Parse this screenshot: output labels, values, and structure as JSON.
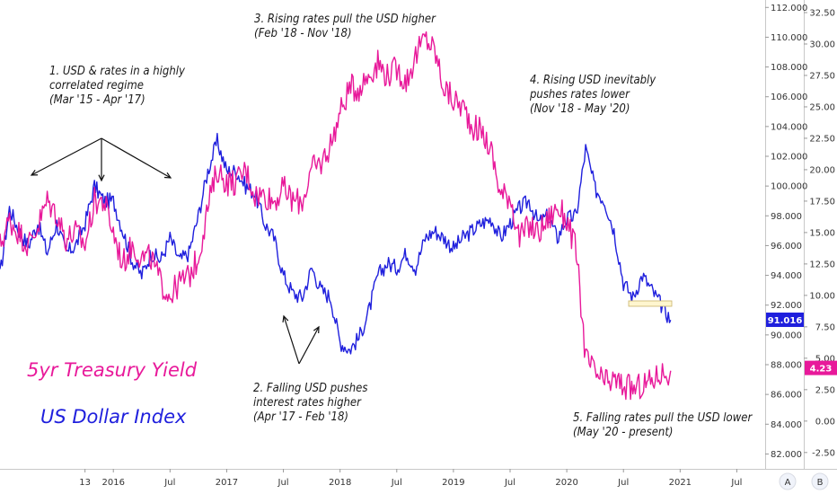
{
  "chart_data": {
    "type": "line",
    "x_range": [
      "2015-01",
      "2021-10"
    ],
    "x_ticks": [
      "13",
      "2016",
      "Jul",
      "2017",
      "Jul",
      "2018",
      "Jul",
      "2019",
      "Jul",
      "2020",
      "Jul",
      "2021",
      "Jul"
    ],
    "left_axis": {
      "ticks": [
        "112.000",
        "110.000",
        "108.000",
        "106.000",
        "104.000",
        "102.000",
        "100.000",
        "98.000",
        "96.000",
        "94.000",
        "92.000",
        "90.000",
        "88.000",
        "86.000",
        "84.000",
        "82.000"
      ],
      "range": [
        81,
        112.5
      ]
    },
    "right_axis": {
      "ticks": [
        "32.50",
        "30.00",
        "27.50",
        "25.00",
        "22.50",
        "20.00",
        "17.50",
        "15.00",
        "12.50",
        "10.00",
        "7.50",
        "5.00",
        "2.50",
        "0.00",
        "-2.50"
      ],
      "range": [
        -3.8,
        33.5
      ]
    },
    "series": [
      {
        "name": "US Dollar Index",
        "color": "#1f1fdd",
        "axis": "left",
        "points": [
          [
            "2015-01",
            94.0
          ],
          [
            "2015-02",
            98.5
          ],
          [
            "2015-03",
            97.0
          ],
          [
            "2015-04",
            96.0
          ],
          [
            "2015-05",
            97.5
          ],
          [
            "2015-06",
            95.5
          ],
          [
            "2015-07",
            97.5
          ],
          [
            "2015-08",
            95.5
          ],
          [
            "2015-09",
            96.0
          ],
          [
            "2015-10",
            97.5
          ],
          [
            "2015-11",
            100.0
          ],
          [
            "2015-12",
            99.0
          ],
          [
            "2016-01",
            99.0
          ],
          [
            "2016-02",
            97.0
          ],
          [
            "2016-03",
            95.0
          ],
          [
            "2016-04",
            94.0
          ],
          [
            "2016-05",
            95.5
          ],
          [
            "2016-06",
            95.0
          ],
          [
            "2016-07",
            96.5
          ],
          [
            "2016-08",
            95.0
          ],
          [
            "2016-09",
            95.5
          ],
          [
            "2016-10",
            98.0
          ],
          [
            "2016-11",
            101.0
          ],
          [
            "2016-12",
            103.0
          ],
          [
            "2017-01",
            101.0
          ],
          [
            "2017-02",
            101.0
          ],
          [
            "2017-03",
            100.0
          ],
          [
            "2017-04",
            99.5
          ],
          [
            "2017-05",
            97.5
          ],
          [
            "2017-06",
            96.5
          ],
          [
            "2017-07",
            94.0
          ],
          [
            "2017-08",
            92.8
          ],
          [
            "2017-09",
            92.5
          ],
          [
            "2017-10",
            94.5
          ],
          [
            "2017-11",
            93.0
          ],
          [
            "2017-12",
            92.5
          ],
          [
            "2018-01",
            89.5
          ],
          [
            "2018-02",
            89.0
          ],
          [
            "2018-03",
            89.8
          ],
          [
            "2018-04",
            91.5
          ],
          [
            "2018-05",
            94.0
          ],
          [
            "2018-06",
            94.8
          ],
          [
            "2018-07",
            94.5
          ],
          [
            "2018-08",
            95.5
          ],
          [
            "2018-09",
            94.5
          ],
          [
            "2018-10",
            96.5
          ],
          [
            "2018-11",
            97.0
          ],
          [
            "2018-12",
            96.5
          ],
          [
            "2019-01",
            95.8
          ],
          [
            "2019-02",
            96.5
          ],
          [
            "2019-03",
            97.0
          ],
          [
            "2019-04",
            97.5
          ],
          [
            "2019-05",
            97.8
          ],
          [
            "2019-06",
            96.5
          ],
          [
            "2019-07",
            97.5
          ],
          [
            "2019-08",
            98.5
          ],
          [
            "2019-09",
            99.0
          ],
          [
            "2019-10",
            97.5
          ],
          [
            "2019-11",
            98.0
          ],
          [
            "2019-12",
            96.5
          ],
          [
            "2020-01",
            97.8
          ],
          [
            "2020-02",
            98.0
          ],
          [
            "2020-03",
            102.5
          ],
          [
            "2020-04",
            99.8
          ],
          [
            "2020-05",
            99.0
          ],
          [
            "2020-06",
            97.0
          ],
          [
            "2020-07",
            93.5
          ],
          [
            "2020-08",
            92.5
          ],
          [
            "2020-09",
            94.0
          ],
          [
            "2020-10",
            93.0
          ],
          [
            "2020-11",
            92.0
          ],
          [
            "2020-12",
            91.0
          ]
        ]
      },
      {
        "name": "5yr Treasury Yield",
        "color": "#e8199a",
        "axis": "right",
        "points": [
          [
            "2015-01",
            14.0
          ],
          [
            "2015-02",
            16.0
          ],
          [
            "2015-03",
            15.0
          ],
          [
            "2015-04",
            14.0
          ],
          [
            "2015-05",
            15.5
          ],
          [
            "2015-06",
            17.5
          ],
          [
            "2015-07",
            16.5
          ],
          [
            "2015-08",
            14.5
          ],
          [
            "2015-09",
            15.0
          ],
          [
            "2015-10",
            14.0
          ],
          [
            "2015-11",
            17.5
          ],
          [
            "2015-12",
            17.5
          ],
          [
            "2016-01",
            15.0
          ],
          [
            "2016-02",
            12.5
          ],
          [
            "2016-03",
            14.0
          ],
          [
            "2016-04",
            13.0
          ],
          [
            "2016-05",
            13.0
          ],
          [
            "2016-06",
            11.0
          ],
          [
            "2016-07",
            10.0
          ],
          [
            "2016-08",
            11.0
          ],
          [
            "2016-09",
            11.5
          ],
          [
            "2016-10",
            13.0
          ],
          [
            "2016-11",
            17.0
          ],
          [
            "2016-12",
            20.0
          ],
          [
            "2017-01",
            19.0
          ],
          [
            "2017-02",
            19.0
          ],
          [
            "2017-03",
            20.0
          ],
          [
            "2017-04",
            18.0
          ],
          [
            "2017-05",
            18.0
          ],
          [
            "2017-06",
            17.5
          ],
          [
            "2017-07",
            18.5
          ],
          [
            "2017-08",
            17.5
          ],
          [
            "2017-09",
            17.5
          ],
          [
            "2017-10",
            20.0
          ],
          [
            "2017-11",
            20.5
          ],
          [
            "2017-12",
            22.0
          ],
          [
            "2018-01",
            24.5
          ],
          [
            "2018-02",
            26.5
          ],
          [
            "2018-03",
            26.5
          ],
          [
            "2018-04",
            27.5
          ],
          [
            "2018-05",
            28.5
          ],
          [
            "2018-06",
            27.5
          ],
          [
            "2018-07",
            28.0
          ],
          [
            "2018-08",
            27.0
          ],
          [
            "2018-09",
            29.0
          ],
          [
            "2018-10",
            30.5
          ],
          [
            "2018-11",
            29.5
          ],
          [
            "2018-12",
            26.5
          ],
          [
            "2019-01",
            25.5
          ],
          [
            "2019-02",
            25.0
          ],
          [
            "2019-03",
            23.5
          ],
          [
            "2019-04",
            23.0
          ],
          [
            "2019-05",
            21.5
          ],
          [
            "2019-06",
            18.0
          ],
          [
            "2019-07",
            18.0
          ],
          [
            "2019-08",
            14.5
          ],
          [
            "2019-09",
            15.5
          ],
          [
            "2019-10",
            15.0
          ],
          [
            "2019-11",
            16.0
          ],
          [
            "2019-12",
            17.0
          ],
          [
            "2020-01",
            16.0
          ],
          [
            "2020-02",
            13.5
          ],
          [
            "2020-03",
            5.0
          ],
          [
            "2020-04",
            3.8
          ],
          [
            "2020-05",
            3.0
          ],
          [
            "2020-06",
            3.2
          ],
          [
            "2020-07",
            2.8
          ],
          [
            "2020-08",
            2.5
          ],
          [
            "2020-09",
            2.8
          ],
          [
            "2020-10",
            3.2
          ],
          [
            "2020-11",
            3.8
          ],
          [
            "2020-12",
            4.0
          ]
        ]
      }
    ],
    "last_value_labels": [
      {
        "series": "US Dollar Index",
        "label": "91.016",
        "color": "#1f1fdd",
        "value": 91.016
      },
      {
        "series": "5yr Treasury Yield",
        "label": "4.23",
        "color": "#e8199a",
        "value": 4.23
      }
    ],
    "legend_position": "bottom-left",
    "grid": false
  },
  "annotations": [
    {
      "id": "a1",
      "lines": [
        "1. USD & rates in a highly",
        "correlated regime",
        "(Mar '15 - Apr '17)"
      ]
    },
    {
      "id": "a2",
      "lines": [
        "2. Falling USD pushes",
        "interest rates higher",
        "(Apr '17 - Feb '18)"
      ]
    },
    {
      "id": "a3",
      "lines": [
        "3. Rising rates pull the USD higher",
        "(Feb '18 - Nov '18)"
      ]
    },
    {
      "id": "a4",
      "lines": [
        "4. Rising USD inevitably",
        "pushes rates lower",
        "(Nov '18 -  May '20)"
      ]
    },
    {
      "id": "a5",
      "lines": [
        "5. Falling rates pull the USD lower",
        "(May '20 - present)"
      ]
    }
  ],
  "legend": {
    "yield_label": "5yr Treasury Yield",
    "dollar_label": "US Dollar Index",
    "yield_color": "#e8199a",
    "dollar_color": "#1f1fdd"
  },
  "axis_buttons": {
    "left": "A",
    "right": "B"
  }
}
